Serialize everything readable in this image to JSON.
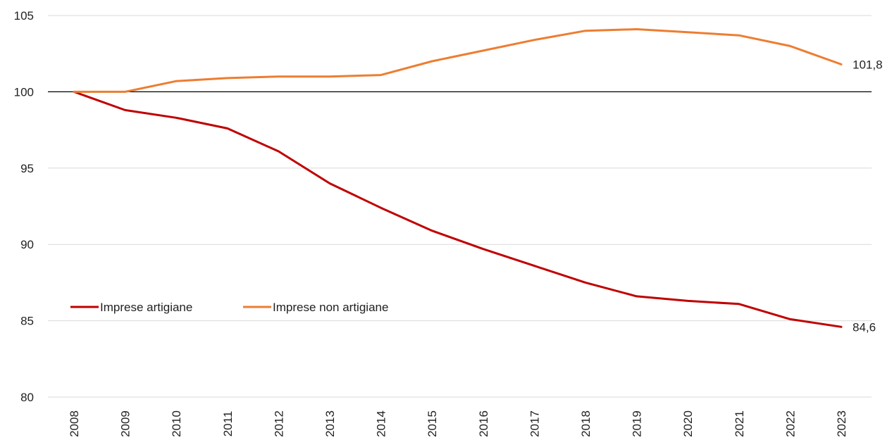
{
  "chart_data": {
    "type": "line",
    "title": "",
    "xlabel": "",
    "ylabel": "",
    "categories": [
      "2008",
      "2009",
      "2010",
      "2011",
      "2012",
      "2013",
      "2014",
      "2015",
      "2016",
      "2017",
      "2018",
      "2019",
      "2020",
      "2021",
      "2022",
      "2023"
    ],
    "ylim": [
      80,
      105
    ],
    "yticks": [
      80,
      85,
      90,
      95,
      100,
      105
    ],
    "ytick_labels": [
      "80",
      "85",
      "90",
      "95",
      "100",
      "105"
    ],
    "grid": true,
    "reference_line": 100,
    "legend_position": "lower-left",
    "series": [
      {
        "name": "Imprese artigiane",
        "color": "#C00000",
        "values": [
          100,
          98.8,
          98.3,
          97.6,
          96.1,
          94.0,
          92.4,
          90.9,
          89.7,
          88.6,
          87.5,
          86.6,
          86.3,
          86.1,
          85.1,
          84.6
        ],
        "end_label": "84,6"
      },
      {
        "name": "Imprese non artigiane",
        "color": "#ED7D31",
        "values": [
          100,
          100,
          100.7,
          100.9,
          101.0,
          101.0,
          101.1,
          102.0,
          102.7,
          103.4,
          104.0,
          104.1,
          103.9,
          103.7,
          103.0,
          101.8
        ],
        "end_label": "101,8"
      }
    ]
  }
}
